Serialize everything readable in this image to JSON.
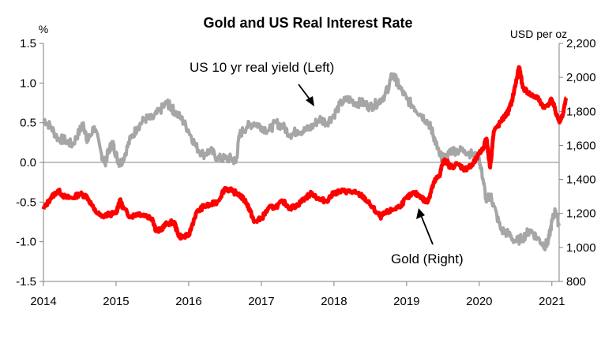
{
  "chart_data": {
    "type": "line",
    "title": "Gold and US Real Interest Rate",
    "left_unit": "%",
    "right_unit": "USD per oz",
    "x_ticks": [
      "2014",
      "2015",
      "2016",
      "2017",
      "2018",
      "2019",
      "2020",
      "2021"
    ],
    "x_range": [
      2014.0,
      2021.1
    ],
    "left_axis": {
      "range": [
        -1.5,
        1.5
      ],
      "ticks": [
        "1.5",
        "1.0",
        "0.5",
        "0.0",
        "-0.5",
        "-1.0",
        "-1.5"
      ]
    },
    "right_axis": {
      "range": [
        800,
        2200
      ],
      "ticks": [
        "2,200",
        "2,000",
        "1,800",
        "1,600",
        "1,400",
        "1,200",
        "1,000",
        "800"
      ]
    },
    "annotations": {
      "left_series": "US 10 yr real yield (Left)",
      "right_series": "Gold (Right)"
    },
    "colors": {
      "left_series": "#a6a6a6",
      "right_series": "#ff0000",
      "axis": "#808080"
    },
    "series": [
      {
        "axis": "left",
        "points": [
          [
            2014.0,
            0.55
          ],
          [
            2014.1,
            0.45
          ],
          [
            2014.2,
            0.3
          ],
          [
            2014.3,
            0.28
          ],
          [
            2014.4,
            0.22
          ],
          [
            2014.5,
            0.4
          ],
          [
            2014.55,
            0.5
          ],
          [
            2014.6,
            0.25
          ],
          [
            2014.7,
            0.45
          ],
          [
            2014.8,
            0.1
          ],
          [
            2014.85,
            0.0
          ],
          [
            2014.9,
            0.15
          ],
          [
            2014.95,
            0.25
          ],
          [
            2015.0,
            0.1
          ],
          [
            2015.05,
            -0.02
          ],
          [
            2015.1,
            0.05
          ],
          [
            2015.2,
            0.3
          ],
          [
            2015.3,
            0.45
          ],
          [
            2015.4,
            0.55
          ],
          [
            2015.5,
            0.55
          ],
          [
            2015.6,
            0.65
          ],
          [
            2015.7,
            0.75
          ],
          [
            2015.75,
            0.7
          ],
          [
            2015.8,
            0.65
          ],
          [
            2015.9,
            0.55
          ],
          [
            2016.0,
            0.4
          ],
          [
            2016.1,
            0.2
          ],
          [
            2016.2,
            0.1
          ],
          [
            2016.3,
            0.15
          ],
          [
            2016.4,
            0.05
          ],
          [
            2016.5,
            0.05
          ],
          [
            2016.6,
            0.05
          ],
          [
            2016.65,
            0.0
          ],
          [
            2016.7,
            0.35
          ],
          [
            2016.8,
            0.45
          ],
          [
            2016.9,
            0.5
          ],
          [
            2017.0,
            0.45
          ],
          [
            2017.1,
            0.4
          ],
          [
            2017.2,
            0.5
          ],
          [
            2017.3,
            0.45
          ],
          [
            2017.4,
            0.35
          ],
          [
            2017.5,
            0.4
          ],
          [
            2017.6,
            0.4
          ],
          [
            2017.7,
            0.45
          ],
          [
            2017.8,
            0.55
          ],
          [
            2017.9,
            0.5
          ],
          [
            2018.0,
            0.6
          ],
          [
            2018.1,
            0.75
          ],
          [
            2018.2,
            0.8
          ],
          [
            2018.3,
            0.75
          ],
          [
            2018.4,
            0.75
          ],
          [
            2018.5,
            0.7
          ],
          [
            2018.6,
            0.75
          ],
          [
            2018.7,
            0.85
          ],
          [
            2018.75,
            0.95
          ],
          [
            2018.8,
            1.1
          ],
          [
            2018.85,
            1.05
          ],
          [
            2018.9,
            0.95
          ],
          [
            2019.0,
            0.8
          ],
          [
            2019.1,
            0.7
          ],
          [
            2019.2,
            0.6
          ],
          [
            2019.3,
            0.5
          ],
          [
            2019.35,
            0.4
          ],
          [
            2019.4,
            0.25
          ],
          [
            2019.45,
            0.1
          ],
          [
            2019.5,
            0.05
          ],
          [
            2019.55,
            0.05
          ],
          [
            2019.6,
            0.15
          ],
          [
            2019.7,
            0.15
          ],
          [
            2019.8,
            0.15
          ],
          [
            2019.9,
            0.1
          ],
          [
            2020.0,
            0.05
          ],
          [
            2020.05,
            -0.2
          ],
          [
            2020.1,
            -0.5
          ],
          [
            2020.15,
            -0.4
          ],
          [
            2020.2,
            -0.55
          ],
          [
            2020.3,
            -0.85
          ],
          [
            2020.4,
            -0.9
          ],
          [
            2020.5,
            -1.0
          ],
          [
            2020.6,
            -0.95
          ],
          [
            2020.7,
            -0.85
          ],
          [
            2020.8,
            -0.95
          ],
          [
            2020.9,
            -1.05
          ],
          [
            2020.95,
            -1.0
          ],
          [
            2021.0,
            -0.75
          ],
          [
            2021.05,
            -0.6
          ],
          [
            2021.1,
            -0.8
          ]
        ]
      },
      {
        "axis": "right",
        "points": [
          [
            2014.0,
            1225
          ],
          [
            2014.1,
            1290
          ],
          [
            2014.2,
            1335
          ],
          [
            2014.3,
            1295
          ],
          [
            2014.4,
            1290
          ],
          [
            2014.5,
            1315
          ],
          [
            2014.6,
            1300
          ],
          [
            2014.7,
            1220
          ],
          [
            2014.8,
            1180
          ],
          [
            2014.9,
            1195
          ],
          [
            2015.0,
            1200
          ],
          [
            2015.05,
            1280
          ],
          [
            2015.1,
            1230
          ],
          [
            2015.2,
            1180
          ],
          [
            2015.3,
            1200
          ],
          [
            2015.4,
            1190
          ],
          [
            2015.5,
            1170
          ],
          [
            2015.55,
            1100
          ],
          [
            2015.6,
            1100
          ],
          [
            2015.7,
            1140
          ],
          [
            2015.8,
            1150
          ],
          [
            2015.85,
            1080
          ],
          [
            2015.9,
            1060
          ],
          [
            2016.0,
            1070
          ],
          [
            2016.1,
            1200
          ],
          [
            2016.2,
            1240
          ],
          [
            2016.3,
            1250
          ],
          [
            2016.4,
            1270
          ],
          [
            2016.5,
            1350
          ],
          [
            2016.6,
            1330
          ],
          [
            2016.7,
            1310
          ],
          [
            2016.8,
            1260
          ],
          [
            2016.85,
            1210
          ],
          [
            2016.9,
            1150
          ],
          [
            2017.0,
            1170
          ],
          [
            2017.1,
            1230
          ],
          [
            2017.2,
            1240
          ],
          [
            2017.3,
            1270
          ],
          [
            2017.4,
            1230
          ],
          [
            2017.5,
            1250
          ],
          [
            2017.6,
            1290
          ],
          [
            2017.7,
            1320
          ],
          [
            2017.8,
            1280
          ],
          [
            2017.9,
            1275
          ],
          [
            2018.0,
            1320
          ],
          [
            2018.1,
            1330
          ],
          [
            2018.2,
            1330
          ],
          [
            2018.3,
            1320
          ],
          [
            2018.4,
            1300
          ],
          [
            2018.5,
            1250
          ],
          [
            2018.6,
            1200
          ],
          [
            2018.65,
            1180
          ],
          [
            2018.7,
            1200
          ],
          [
            2018.8,
            1220
          ],
          [
            2018.9,
            1240
          ],
          [
            2019.0,
            1290
          ],
          [
            2019.1,
            1320
          ],
          [
            2019.2,
            1300
          ],
          [
            2019.25,
            1270
          ],
          [
            2019.3,
            1280
          ],
          [
            2019.35,
            1350
          ],
          [
            2019.4,
            1400
          ],
          [
            2019.45,
            1420
          ],
          [
            2019.5,
            1500
          ],
          [
            2019.55,
            1510
          ],
          [
            2019.6,
            1470
          ],
          [
            2019.7,
            1490
          ],
          [
            2019.8,
            1460
          ],
          [
            2019.85,
            1470
          ],
          [
            2019.9,
            1480
          ],
          [
            2020.0,
            1550
          ],
          [
            2020.05,
            1580
          ],
          [
            2020.1,
            1640
          ],
          [
            2020.15,
            1470
          ],
          [
            2020.2,
            1680
          ],
          [
            2020.3,
            1740
          ],
          [
            2020.35,
            1770
          ],
          [
            2020.4,
            1800
          ],
          [
            2020.45,
            1860
          ],
          [
            2020.5,
            1960
          ],
          [
            2020.55,
            2060
          ],
          [
            2020.6,
            1940
          ],
          [
            2020.7,
            1900
          ],
          [
            2020.8,
            1880
          ],
          [
            2020.9,
            1820
          ],
          [
            2021.0,
            1870
          ],
          [
            2021.05,
            1800
          ],
          [
            2021.1,
            1740
          ],
          [
            2021.15,
            1780
          ],
          [
            2021.2,
            1880
          ]
        ]
      }
    ]
  }
}
